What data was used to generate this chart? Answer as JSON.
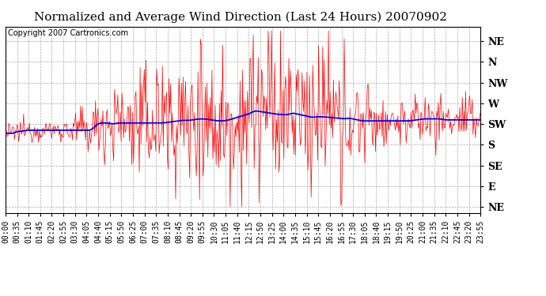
{
  "title": "Normalized and Average Wind Direction (Last 24 Hours) 20070902",
  "copyright": "Copyright 2007 Cartronics.com",
  "ytick_labels": [
    "NE",
    "N",
    "NW",
    "W",
    "SW",
    "S",
    "SE",
    "E",
    "NE"
  ],
  "ytick_values": [
    8,
    7,
    6,
    5,
    4,
    3,
    2,
    1,
    0
  ],
  "xtick_labels": [
    "00:00",
    "00:35",
    "01:10",
    "01:45",
    "02:20",
    "02:55",
    "03:30",
    "04:05",
    "04:40",
    "05:15",
    "05:50",
    "06:25",
    "07:00",
    "07:35",
    "08:10",
    "08:45",
    "09:20",
    "09:55",
    "10:30",
    "11:05",
    "11:40",
    "12:15",
    "12:50",
    "13:25",
    "14:00",
    "14:35",
    "15:10",
    "15:45",
    "16:20",
    "16:55",
    "17:30",
    "18:05",
    "18:40",
    "19:15",
    "19:50",
    "20:25",
    "21:00",
    "21:35",
    "22:10",
    "22:45",
    "23:20",
    "23:55"
  ],
  "background_color": "#ffffff",
  "plot_bg_color": "#ffffff",
  "grid_color": "#aaaaaa",
  "red_line_color": "#ff0000",
  "blue_line_color": "#0000ff",
  "title_fontsize": 11,
  "copyright_fontsize": 7,
  "tick_fontsize": 7,
  "ytick_fontsize": 9
}
